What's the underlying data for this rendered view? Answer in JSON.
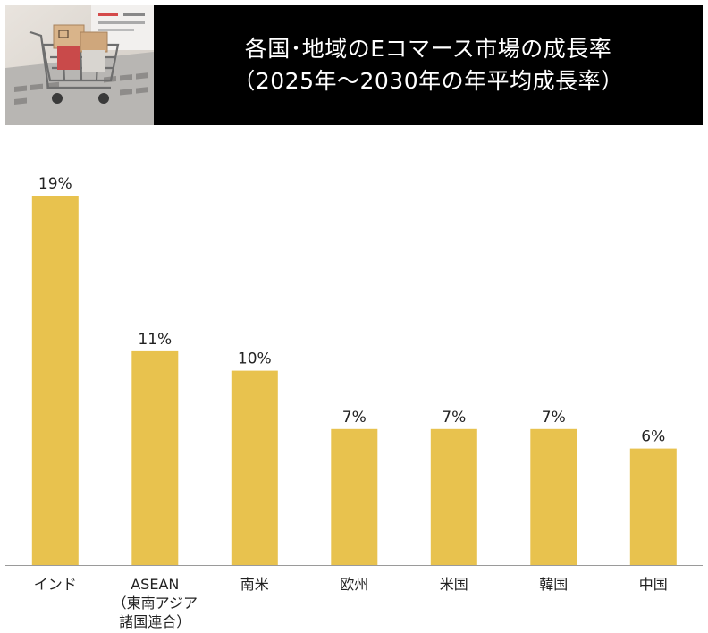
{
  "header": {
    "title_line1": "各国･地域のEコマース市場の成長率",
    "title_line2": "（2025年～2030年の年平均成長率）"
  },
  "colors": {
    "bar": "#E8C24E",
    "header_bg": "#000000",
    "title_text": "#ffffff"
  },
  "chart_data": {
    "type": "bar",
    "title": "各国･地域のEコマース市場の成長率（2025年～2030年の年平均成長率）",
    "unit": "%",
    "categories": [
      [
        "インド"
      ],
      [
        "ASEAN",
        "（東南アジア",
        "諸国連合）"
      ],
      [
        "南米"
      ],
      [
        "欧州"
      ],
      [
        "米国"
      ],
      [
        "韓国"
      ],
      [
        "中国"
      ]
    ],
    "values": [
      19,
      11,
      10,
      7,
      7,
      7,
      6
    ],
    "value_labels": [
      "19%",
      "11%",
      "10%",
      "7%",
      "7%",
      "7%",
      "6%"
    ],
    "ylim": [
      0,
      19
    ],
    "grid": false,
    "legend": "none"
  }
}
